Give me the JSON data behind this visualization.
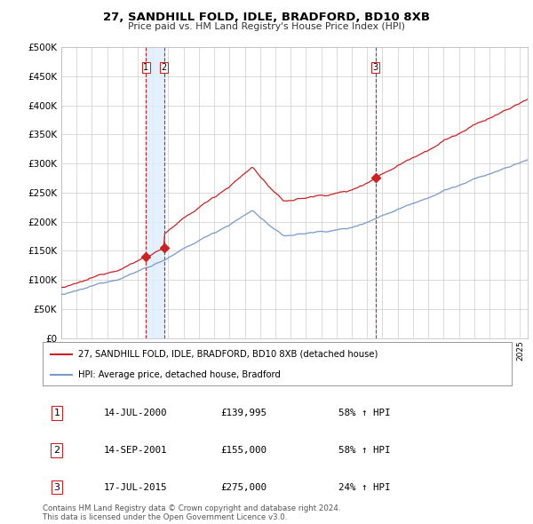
{
  "title": "27, SANDHILL FOLD, IDLE, BRADFORD, BD10 8XB",
  "subtitle": "Price paid vs. HM Land Registry's House Price Index (HPI)",
  "ylim": [
    0,
    500000
  ],
  "yticks": [
    0,
    50000,
    100000,
    150000,
    200000,
    250000,
    300000,
    350000,
    400000,
    450000,
    500000
  ],
  "xlim_start": 1995.0,
  "xlim_end": 2025.5,
  "hpi_color": "#7799cc",
  "price_color": "#cc2222",
  "grid_color": "#cccccc",
  "bg_color": "#ffffff",
  "vline_color": "#cc2222",
  "shade_color": "#ddeeff",
  "dot_color": "#cc2222",
  "transactions": [
    {
      "label": "1",
      "date": 2000.54,
      "price": 139995
    },
    {
      "label": "2",
      "date": 2001.71,
      "price": 155000
    },
    {
      "label": "3",
      "date": 2015.54,
      "price": 275000
    }
  ],
  "legend_price_label": "27, SANDHILL FOLD, IDLE, BRADFORD, BD10 8XB (detached house)",
  "legend_hpi_label": "HPI: Average price, detached house, Bradford",
  "table_rows": [
    [
      "1",
      "14-JUL-2000",
      "£139,995",
      "58% ↑ HPI"
    ],
    [
      "2",
      "14-SEP-2001",
      "£155,000",
      "58% ↑ HPI"
    ],
    [
      "3",
      "17-JUL-2015",
      "£275,000",
      "24% ↑ HPI"
    ]
  ],
  "footer": "Contains HM Land Registry data © Crown copyright and database right 2024.\nThis data is licensed under the Open Government Licence v3.0."
}
